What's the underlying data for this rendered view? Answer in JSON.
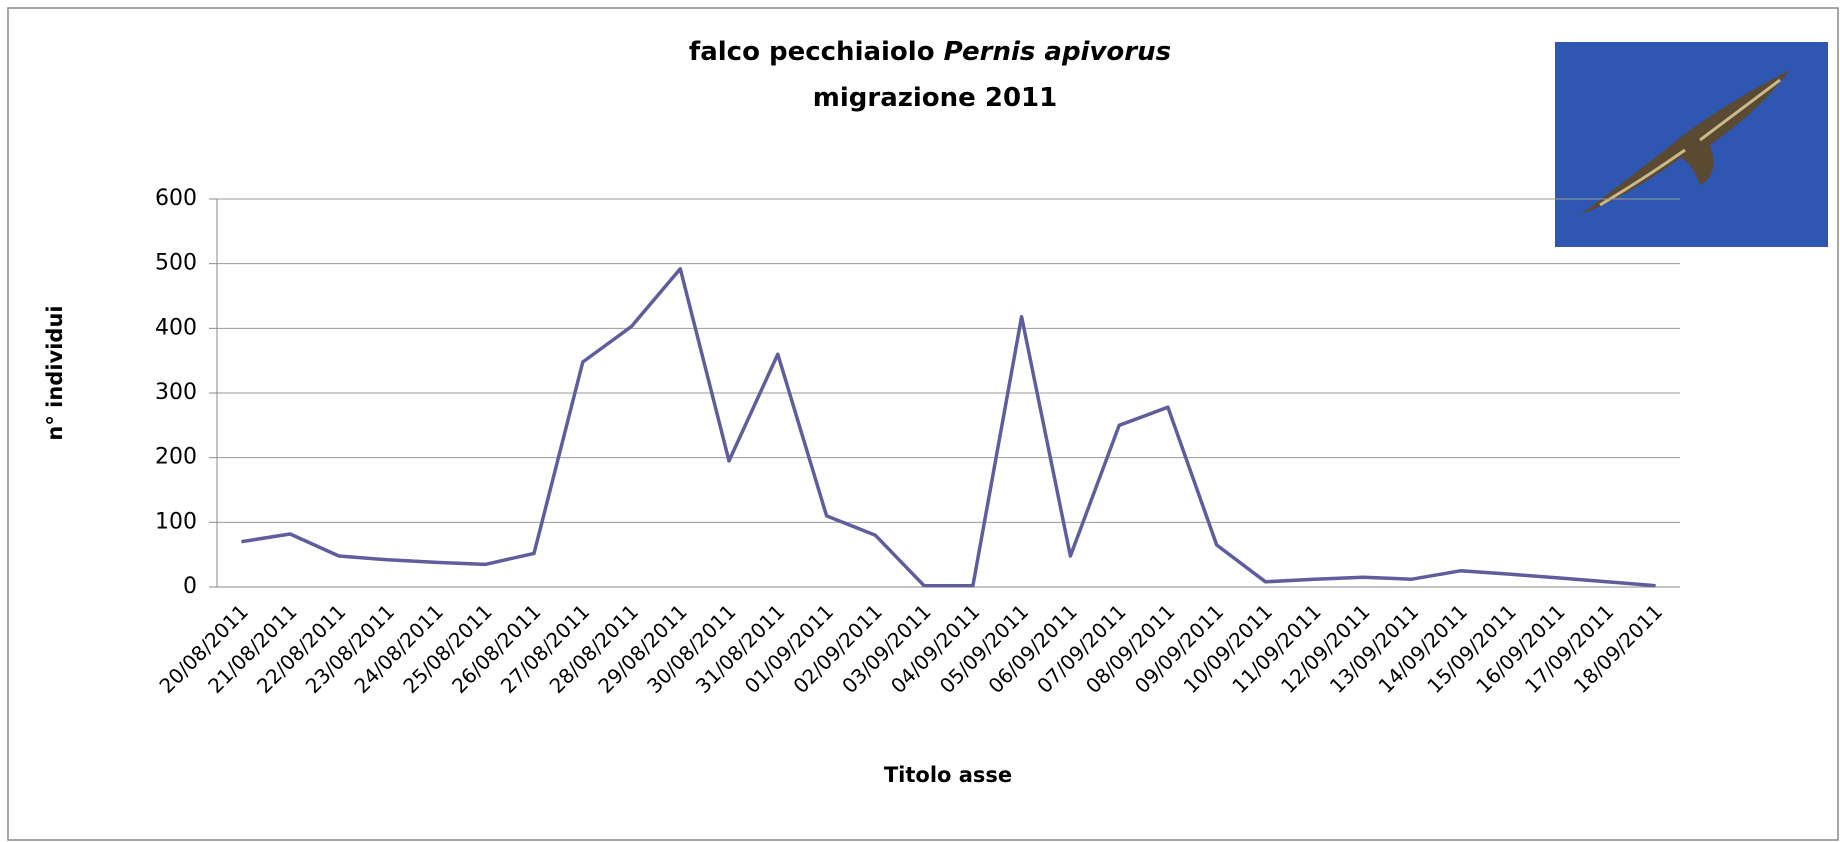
{
  "chart_data": {
    "type": "line",
    "title_prefix": "falco pecchiaiolo",
    "title_species": "Pernis apivorus",
    "subtitle": "migrazione 2011",
    "x_label": "Titolo asse",
    "y_label": "n° individui",
    "categories": [
      "20/08/2011",
      "21/08/2011",
      "22/08/2011",
      "23/08/2011",
      "24/08/2011",
      "25/08/2011",
      "26/08/2011",
      "27/08/2011",
      "28/08/2011",
      "29/08/2011",
      "30/08/2011",
      "31/08/2011",
      "01/09/2011",
      "02/09/2011",
      "03/09/2011",
      "04/09/2011",
      "05/09/2011",
      "06/09/2011",
      "07/09/2011",
      "08/09/2011",
      "09/09/2011",
      "10/09/2011",
      "11/09/2011",
      "12/09/2011",
      "13/09/2011",
      "14/09/2011",
      "15/09/2011",
      "16/09/2011",
      "17/09/2011",
      "18/09/2011"
    ],
    "values": [
      70,
      82,
      48,
      42,
      38,
      35,
      52,
      348,
      403,
      492,
      195,
      360,
      110,
      80,
      2,
      2,
      418,
      48,
      250,
      278,
      65,
      8,
      12,
      15,
      12,
      25,
      20,
      14,
      8,
      2
    ],
    "color": "#5e5e9c",
    "ylim": [
      0,
      600
    ],
    "yticks": [
      0,
      100,
      200,
      300,
      400,
      500,
      600
    ],
    "grid": true
  }
}
